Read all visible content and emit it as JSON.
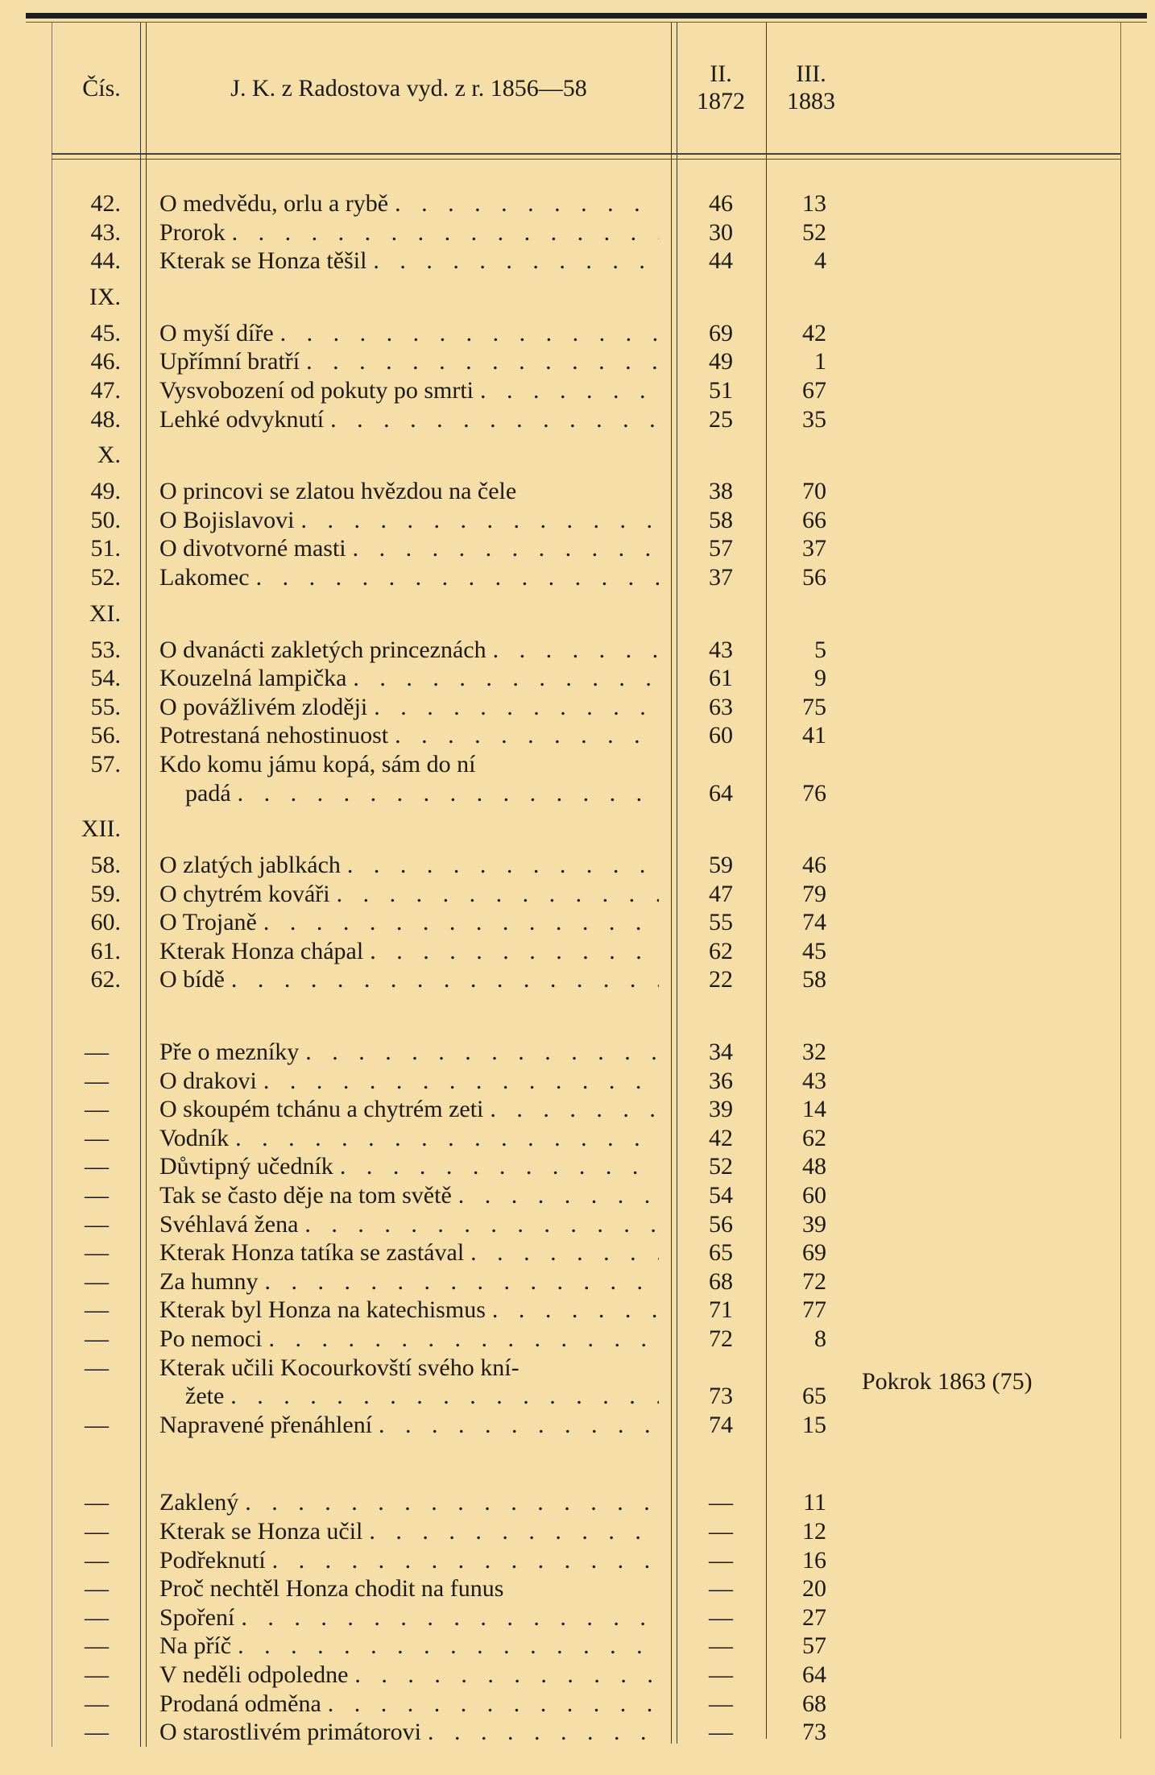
{
  "header": {
    "col_num": "Čís.",
    "col_title": "J. K. z Radostova vyd. z r. 1856—58",
    "col_ii": [
      "II.",
      "1872"
    ],
    "col_iii": [
      "III.",
      "1883"
    ]
  },
  "rows": [
    {
      "num": "42.",
      "title": "O medvědu, orlu a rybě",
      "ii": "46",
      "iii": "13"
    },
    {
      "num": "43.",
      "title": "Prorok",
      "ii": "30",
      "iii": "52"
    },
    {
      "num": "44.",
      "title": "Kterak se Honza těšil",
      "ii": "44",
      "iii": "4"
    },
    {
      "section": "IX."
    },
    {
      "num": "45.",
      "title": "O myší díře",
      "ii": "69",
      "iii": "42"
    },
    {
      "num": "46.",
      "title": "Upřímní bratří",
      "ii": "49",
      "iii": "1"
    },
    {
      "num": "47.",
      "title": "Vysvobození od pokuty po smrti",
      "ii": "51",
      "iii": "67"
    },
    {
      "num": "48.",
      "title": "Lehké odvyknutí",
      "ii": "25",
      "iii": "35"
    },
    {
      "section": "X."
    },
    {
      "num": "49.",
      "title": "O princovi se zlatou hvězdou na čele",
      "ii": "38",
      "iii": "70",
      "noleader": true
    },
    {
      "num": "50.",
      "title": "O Bojislavovi",
      "ii": "58",
      "iii": "66"
    },
    {
      "num": "51.",
      "title": "O divotvorné masti",
      "ii": "57",
      "iii": "37"
    },
    {
      "num": "52.",
      "title": "Lakomec",
      "ii": "37",
      "iii": "56"
    },
    {
      "section": "XI."
    },
    {
      "num": "53.",
      "title": "O dvanácti zakletých princeznách",
      "ii": "43",
      "iii": "5"
    },
    {
      "num": "54.",
      "title": "Kouzelná lampička",
      "ii": "61",
      "iii": "9"
    },
    {
      "num": "55.",
      "title": "O povážlivém zloději",
      "ii": "63",
      "iii": "75"
    },
    {
      "num": "56.",
      "title": "Potrestaná nehostinuost",
      "ii": "60",
      "iii": "41"
    },
    {
      "num": "57.",
      "title": "Kdo komu jámu kopá, sám do ní",
      "cont": "padá",
      "ii": "64",
      "iii": "76"
    },
    {
      "section": "XII."
    },
    {
      "num": "58.",
      "title": "O zlatých jablkách",
      "ii": "59",
      "iii": "46"
    },
    {
      "num": "59.",
      "title": "O chytrém kováři",
      "ii": "47",
      "iii": "79"
    },
    {
      "num": "60.",
      "title": "O Trojaně",
      "ii": "55",
      "iii": "74"
    },
    {
      "num": "61.",
      "title": "Kterak Honza chápal",
      "ii": "62",
      "iii": "45"
    },
    {
      "num": "62.",
      "title": "O bídě",
      "ii": "22",
      "iii": "58"
    },
    {
      "gap": 1
    },
    {
      "num": "—",
      "title": "Pře o mezníky",
      "ii": "34",
      "iii": "32"
    },
    {
      "num": "—",
      "title": "O drakovi",
      "ii": "36",
      "iii": "43"
    },
    {
      "num": "—",
      "title": "O skoupém tchánu a chytrém zeti",
      "ii": "39",
      "iii": "14"
    },
    {
      "num": "—",
      "title": "Vodník",
      "ii": "42",
      "iii": "62"
    },
    {
      "num": "—",
      "title": "Důvtipný učedník",
      "ii": "52",
      "iii": "48"
    },
    {
      "num": "—",
      "title": "Tak se často děje na tom světě",
      "ii": "54",
      "iii": "60"
    },
    {
      "num": "—",
      "title": "Svéhlavá žena",
      "ii": "56",
      "iii": "39"
    },
    {
      "num": "—",
      "title": "Kterak Honza tatíka se zastával",
      "ii": "65",
      "iii": "69"
    },
    {
      "num": "—",
      "title": "Za humny",
      "ii": "68",
      "iii": "72"
    },
    {
      "num": "—",
      "title": "Kterak byl Honza na katechismus",
      "ii": "71",
      "iii": "77"
    },
    {
      "num": "—",
      "title": "Po nemoci",
      "ii": "72",
      "iii": "8"
    },
    {
      "num": "—",
      "title": "Kterak učili Kocourkovští svého kní-",
      "cont": "žete",
      "ii": "73",
      "iii": "65",
      "note": "Pokrok 1863 (75)",
      "noleader": true
    },
    {
      "num": "—",
      "title": "Napravené přenáhlení",
      "ii": "74",
      "iii": "15"
    },
    {
      "gap": 2
    },
    {
      "num": "—",
      "title": "Zaklený",
      "ii": "—",
      "iii": "11"
    },
    {
      "num": "—",
      "title": "Kterak se Honza učil",
      "ii": "—",
      "iii": "12"
    },
    {
      "num": "—",
      "title": "Podřeknutí",
      "ii": "—",
      "iii": "16"
    },
    {
      "num": "—",
      "title": "Proč nechtěl Honza chodit na funus",
      "ii": "—",
      "iii": "20",
      "noleader": true
    },
    {
      "num": "—",
      "title": "Spoření",
      "ii": "—",
      "iii": "27"
    },
    {
      "num": "—",
      "title": "Na příč",
      "ii": "—",
      "iii": "57"
    },
    {
      "num": "—",
      "title": "V neděli odpoledne",
      "ii": "—",
      "iii": "64"
    },
    {
      "num": "—",
      "title": "Prodaná odměna",
      "ii": "—",
      "iii": "68"
    },
    {
      "num": "—",
      "title": "O starostlivém primátorovi",
      "ii": "—",
      "iii": "73"
    }
  ]
}
